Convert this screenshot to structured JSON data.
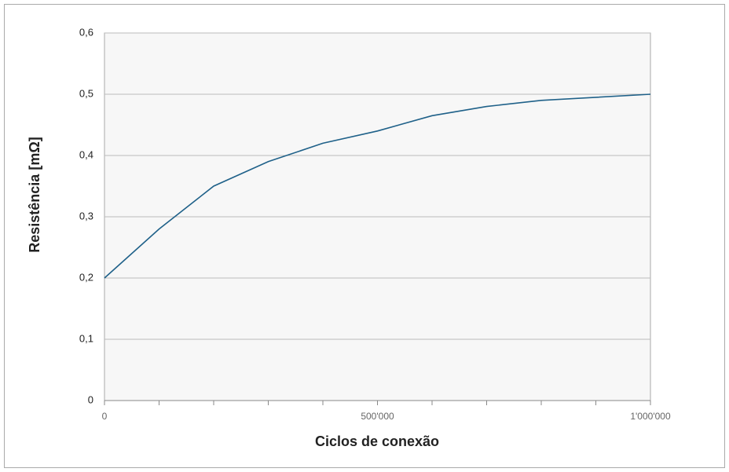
{
  "chart_data": {
    "type": "line",
    "x_label": "Ciclos de conexão",
    "y_label": "Resistência [mΩ]",
    "x": [
      0,
      100000,
      200000,
      300000,
      400000,
      500000,
      600000,
      700000,
      800000,
      900000,
      1000000
    ],
    "series": [
      {
        "color": "#1f6189",
        "values": [
          0.2,
          0.28,
          0.35,
          0.39,
          0.42,
          0.44,
          0.465,
          0.48,
          0.49,
          0.495,
          0.5
        ]
      }
    ],
    "xlim": [
      0,
      1000000
    ],
    "xticks": [
      {
        "value": 0,
        "label": "0"
      },
      {
        "value": 500000,
        "label": "500'000"
      },
      {
        "value": 1000000,
        "label": "1'000'000"
      }
    ],
    "xminorticks": [
      0,
      100000,
      200000,
      300000,
      400000,
      500000,
      600000,
      700000,
      800000,
      900000,
      1000000
    ],
    "ylim": [
      0,
      0.6
    ],
    "yticks": [
      0,
      {
        "value": 0.1,
        "label": "0,1"
      },
      {
        "value": 0.2,
        "label": "0,2"
      },
      {
        "value": 0.3,
        "label": "0,3"
      },
      {
        "value": 0.4,
        "label": "0,4"
      },
      {
        "value": 0.5,
        "label": "0,5"
      },
      {
        "value": 0.6,
        "label": "0,6"
      }
    ],
    "grid": true
  }
}
